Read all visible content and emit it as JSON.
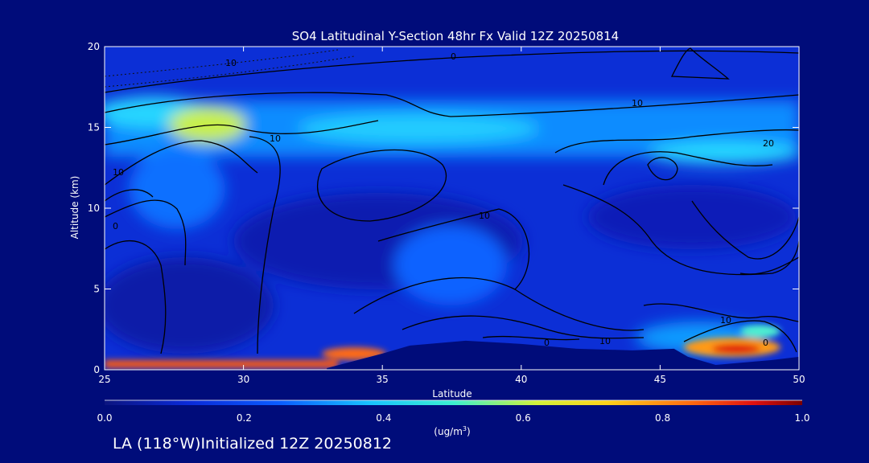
{
  "chart_data": {
    "type": "heatmap",
    "title": "SO4 Latitudinal Y-Section 48hr  Fx Valid 12Z 20250814",
    "xlabel": "Latitude",
    "ylabel": "Altitude (km)",
    "xlim": [
      25,
      50
    ],
    "ylim": [
      0,
      20
    ],
    "x_ticks": [
      25,
      30,
      35,
      40,
      45,
      50
    ],
    "y_ticks": [
      0,
      5,
      10,
      15,
      20
    ],
    "colorbar": {
      "min": 0.0,
      "max": 1.0,
      "ticks": [
        "0.0",
        "0.2",
        "0.4",
        "0.6",
        "0.8",
        "1.0"
      ],
      "unit_label": "(ug/m",
      "unit_sup": "3",
      "unit_close": ")"
    },
    "contour_labels": [
      "10",
      "0",
      "10",
      "10",
      "20",
      "10",
      "10",
      "0",
      "10",
      "0",
      "0",
      "10"
    ],
    "concentration_features": [
      {
        "lat": 29,
        "alt": 15,
        "value": 0.52
      },
      {
        "lat": 25.5,
        "alt": 15.5,
        "value": 0.42
      },
      {
        "lat": 38,
        "alt": 15.3,
        "value": 0.43
      },
      {
        "lat": 42,
        "alt": 14.5,
        "value": 0.35
      },
      {
        "lat": 48,
        "alt": 13.5,
        "value": 0.42
      },
      {
        "lat": 30,
        "alt": 0.25,
        "value": 0.72
      },
      {
        "lat": 34.5,
        "alt": 0.8,
        "value": 0.8
      },
      {
        "lat": 47.5,
        "alt": 1.0,
        "value": 0.92
      },
      {
        "lat": 49,
        "alt": 2.0,
        "value": 0.45
      },
      {
        "lat": 37.5,
        "alt": 4.0,
        "value": 0.3
      }
    ],
    "terrain_profile": [
      {
        "lat": 33,
        "alt": 0.1
      },
      {
        "lat": 35,
        "alt": 1.0
      },
      {
        "lat": 36,
        "alt": 1.5
      },
      {
        "lat": 38,
        "alt": 1.8
      },
      {
        "lat": 40,
        "alt": 1.6
      },
      {
        "lat": 42,
        "alt": 1.3
      },
      {
        "lat": 44,
        "alt": 1.2
      },
      {
        "lat": 45.5,
        "alt": 1.3
      },
      {
        "lat": 46,
        "alt": 0.8
      },
      {
        "lat": 47,
        "alt": 0.3
      },
      {
        "lat": 49,
        "alt": 0.6
      },
      {
        "lat": 50,
        "alt": 0.8
      }
    ]
  },
  "footer": {
    "location_prefix": "LA (118",
    "degree": "°",
    "location_suffix": "W)Initialized 12Z 20250812"
  }
}
